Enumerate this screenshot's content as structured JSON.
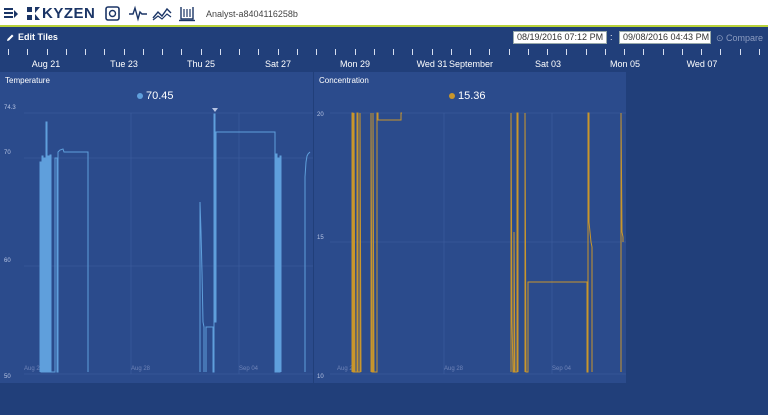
{
  "header": {
    "logo_text": "KYZEN",
    "device_name": "Analyst-a8404116258b",
    "icons": [
      "menu-icon",
      "kyzen-logo-icon",
      "device-icon",
      "pulse-icon",
      "trend-icon",
      "tank-icon"
    ]
  },
  "toolbar": {
    "edit_tiles_label": "Edit Tiles",
    "start_date": "08/19/2016 07:12 PM",
    "separator": ":",
    "end_date": "09/08/2016 04:43 PM",
    "compare_label": "Compare"
  },
  "timeline": {
    "labels": [
      "Aug 21",
      "Tue 23",
      "Thu 25",
      "Sat 27",
      "Mon 29",
      "Wed 31",
      "September",
      "Sat 03",
      "Mon 05",
      "Wed 07"
    ]
  },
  "tiles": [
    {
      "title": "Temperature",
      "current_value": "70.45",
      "color": "#5f9fdc",
      "y_labels": [
        "74.3",
        "70",
        "60",
        "50"
      ],
      "x_labels": [
        "Aug 2",
        "Aug 28",
        "Sep 04"
      ]
    },
    {
      "title": "Concentration",
      "current_value": "15.36",
      "color": "#c9962b",
      "y_labels": [
        "20",
        "15",
        "10"
      ],
      "x_labels": [
        "Aug 2",
        "Aug 28",
        "Sep 04"
      ]
    }
  ],
  "colors": {
    "background": "#213f7a",
    "tile_background": "#2b4b8c",
    "accent_bar": "#b9d23a",
    "temperature_line": "#5f9fdc",
    "concentration_line": "#c9962b"
  }
}
